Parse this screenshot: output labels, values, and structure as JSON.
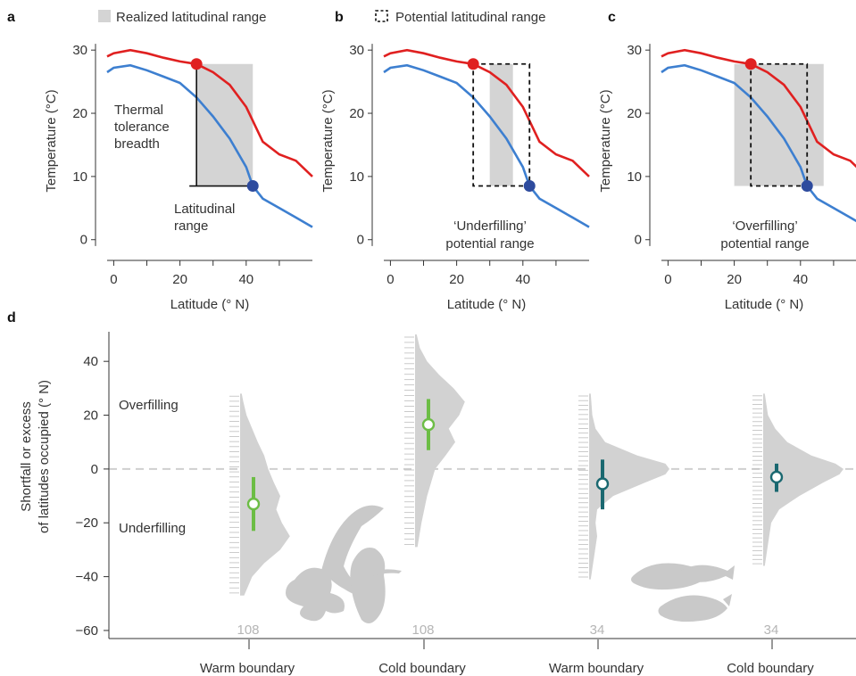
{
  "figure": {
    "legend": {
      "realized": "Realized latitudinal range",
      "potential": "Potential latitudinal range"
    }
  },
  "chart_data": [
    {
      "type": "line",
      "panel": "a",
      "xlabel": "Latitude (° N)",
      "ylabel": "Temperature (°C)",
      "xlim": [
        -2,
        60
      ],
      "ylim": [
        -3,
        32
      ],
      "xticks": [
        0,
        20,
        40
      ],
      "yticks": [
        0,
        10,
        20,
        30
      ],
      "series": [
        {
          "role": "warm",
          "color": "#e02020",
          "x": [
            -2,
            0,
            5,
            10,
            15,
            20,
            25,
            30,
            35,
            40,
            45,
            50,
            55,
            60
          ],
          "y": [
            29,
            29.5,
            30,
            29.5,
            28.8,
            28.2,
            27.8,
            26.5,
            24.5,
            21,
            15.5,
            13.5,
            12.5,
            10
          ]
        },
        {
          "role": "cool",
          "color": "#3d7fd0",
          "x": [
            -2,
            0,
            5,
            10,
            15,
            20,
            25,
            30,
            35,
            40,
            42,
            45,
            50,
            55,
            60
          ],
          "y": [
            26.5,
            27.2,
            27.6,
            26.8,
            25.8,
            24.8,
            22.5,
            19.5,
            16,
            11.5,
            8.5,
            6.5,
            5,
            3.5,
            2
          ]
        }
      ],
      "points": [
        {
          "x": 25,
          "y": 27.8,
          "color": "#e02020"
        },
        {
          "x": 42,
          "y": 8.5,
          "color": "#2e4b9e"
        }
      ],
      "realized_range": {
        "x0": 25,
        "x1": 42,
        "y0": 8.5,
        "y1": 27.8
      },
      "annotations": [
        "Thermal",
        "tolerance",
        "breadth",
        "Latitudinal",
        "range"
      ]
    },
    {
      "type": "line",
      "panel": "b",
      "xlabel": "Latitude (° N)",
      "ylabel": "Temperature (°C)",
      "xlim": [
        -2,
        60
      ],
      "ylim": [
        -3,
        32
      ],
      "xticks": [
        0,
        20,
        40
      ],
      "yticks": [
        0,
        10,
        20,
        30
      ],
      "points": [
        {
          "x": 25,
          "y": 27.8,
          "color": "#e02020"
        },
        {
          "x": 42,
          "y": 8.5,
          "color": "#2e4b9e"
        }
      ],
      "realized_range": {
        "x0": 30,
        "x1": 37,
        "y0": 8.5,
        "y1": 27.8
      },
      "potential_range": {
        "x0": 25,
        "x1": 42,
        "y0": 8.5,
        "y1": 27.8
      },
      "annotations": [
        "‘Underfilling’",
        "potential range"
      ]
    },
    {
      "type": "line",
      "panel": "c",
      "xlabel": "Latitude (° N)",
      "ylabel": "Temperature (°C)",
      "xlim": [
        -2,
        60
      ],
      "ylim": [
        -3,
        32
      ],
      "xticks": [
        0,
        20,
        40
      ],
      "yticks": [
        0,
        10,
        20,
        30
      ],
      "points": [
        {
          "x": 25,
          "y": 27.8,
          "color": "#e02020"
        },
        {
          "x": 42,
          "y": 8.5,
          "color": "#2e4b9e"
        }
      ],
      "realized_range": {
        "x0": 20,
        "x1": 47,
        "y0": 8.5,
        "y1": 27.8
      },
      "potential_range": {
        "x0": 25,
        "x1": 42,
        "y0": 8.5,
        "y1": 27.8
      },
      "annotations": [
        "‘Overfilling’",
        "potential range"
      ]
    },
    {
      "type": "violin",
      "panel": "d",
      "ylabel": [
        "Shortfall or excess",
        "of latitudes occupied (° N)"
      ],
      "ylim": [
        -63,
        51
      ],
      "yticks": [
        40,
        20,
        0,
        -20,
        -40,
        -60
      ],
      "region_labels": [
        "Overfilling",
        "Underfilling"
      ],
      "groups": [
        {
          "label": "Warm boundary",
          "n": "108",
          "mean": -13,
          "ci": [
            -23,
            -3
          ],
          "color": "#6cbd45",
          "range": [
            -47,
            28
          ],
          "density_y": [
            -47,
            -40,
            -35,
            -30,
            -25,
            -20,
            -15,
            -10,
            -5,
            0,
            5,
            10,
            15,
            20,
            25,
            28
          ],
          "density_w": [
            0.05,
            0.15,
            0.3,
            0.5,
            0.62,
            0.52,
            0.45,
            0.5,
            0.42,
            0.35,
            0.3,
            0.22,
            0.15,
            0.08,
            0.04,
            0.02
          ]
        },
        {
          "label": "Cold boundary",
          "n": "108",
          "mean": 16.5,
          "ci": [
            7,
            26
          ],
          "color": "#6cbd45",
          "range": [
            -29,
            50
          ],
          "density_y": [
            -29,
            -20,
            -10,
            0,
            5,
            10,
            15,
            20,
            25,
            30,
            35,
            40,
            45,
            50
          ],
          "density_w": [
            0.03,
            0.08,
            0.15,
            0.25,
            0.38,
            0.5,
            0.42,
            0.55,
            0.62,
            0.48,
            0.3,
            0.15,
            0.06,
            0.02
          ]
        },
        {
          "label": "Warm boundary",
          "n": "34",
          "mean": -5.5,
          "ci": [
            -15,
            3.5
          ],
          "color": "#1a6870",
          "range": [
            -41,
            28
          ],
          "density_y": [
            -41,
            -35,
            -25,
            -20,
            -15,
            -10,
            -5,
            -2,
            0,
            2,
            5,
            10,
            15,
            20,
            28
          ],
          "density_w": [
            0.02,
            0.05,
            0.1,
            0.08,
            0.1,
            0.3,
            0.7,
            0.95,
            1.0,
            0.95,
            0.6,
            0.2,
            0.08,
            0.04,
            0.02
          ]
        },
        {
          "label": "Cold boundary",
          "n": "34",
          "mean": -3,
          "ci": [
            -8.5,
            2
          ],
          "color": "#1a6870",
          "range": [
            -36,
            28
          ],
          "density_y": [
            -36,
            -30,
            -20,
            -15,
            -10,
            -5,
            -2,
            0,
            2,
            5,
            10,
            15,
            20,
            28
          ],
          "density_w": [
            0.02,
            0.05,
            0.1,
            0.2,
            0.45,
            0.75,
            0.95,
            1.0,
            0.9,
            0.6,
            0.3,
            0.15,
            0.06,
            0.02
          ]
        }
      ]
    }
  ]
}
